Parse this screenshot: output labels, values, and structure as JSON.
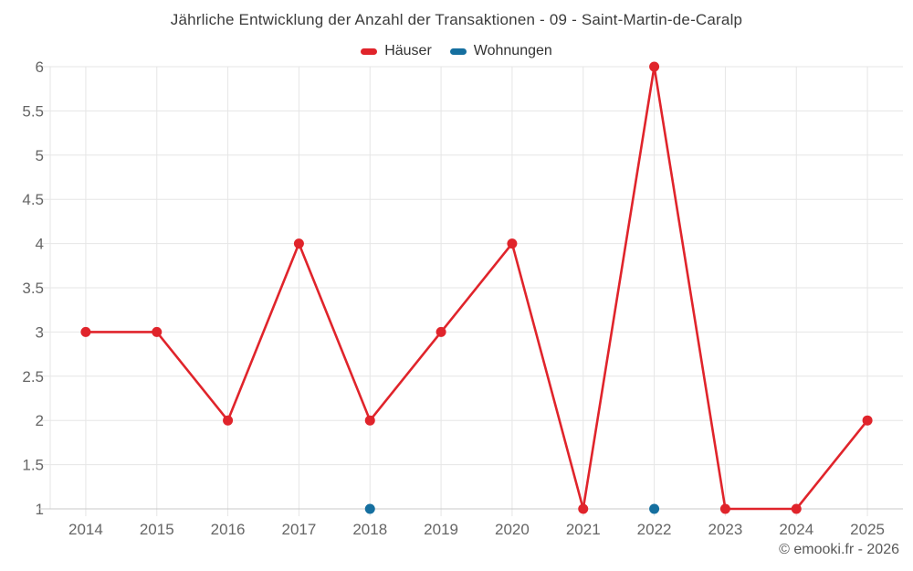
{
  "title": "Jährliche Entwicklung der Anzahl der Transaktionen - 09 - Saint-Martin-de-Caralp",
  "footer": "© emooki.fr - 2026",
  "colors": {
    "haeuser_red": "#e0242b",
    "wohnungen_blue": "#156f9f",
    "axis_text": "#666666",
    "gridline": "#e6e6e6",
    "axis_line": "#c9c9c9",
    "title_text": "#3c3c3c",
    "background": "#ffffff"
  },
  "chart_data": {
    "type": "line",
    "title": "Jährliche Entwicklung der Anzahl der Transaktionen - 09 - Saint-Martin-de-Caralp",
    "categories": [
      "2014",
      "2015",
      "2016",
      "2017",
      "2018",
      "2019",
      "2020",
      "2021",
      "2022",
      "2023",
      "2024",
      "2025"
    ],
    "series": [
      {
        "name": "Häuser",
        "color": "#e0242b",
        "values": [
          3,
          3,
          2,
          4,
          2,
          3,
          4,
          1,
          6,
          1,
          1,
          2
        ]
      },
      {
        "name": "Wohnungen",
        "color": "#156f9f",
        "values": [
          null,
          null,
          null,
          null,
          1,
          null,
          null,
          null,
          1,
          null,
          null,
          null
        ]
      }
    ],
    "xlabel": "",
    "ylabel": "",
    "ylim": [
      1,
      6
    ],
    "ytick_step": 0.5,
    "yticks": [
      1,
      1.5,
      2,
      2.5,
      3,
      3.5,
      4,
      4.5,
      5,
      5.5,
      6
    ],
    "grid": true,
    "legend_position": "top-center"
  }
}
